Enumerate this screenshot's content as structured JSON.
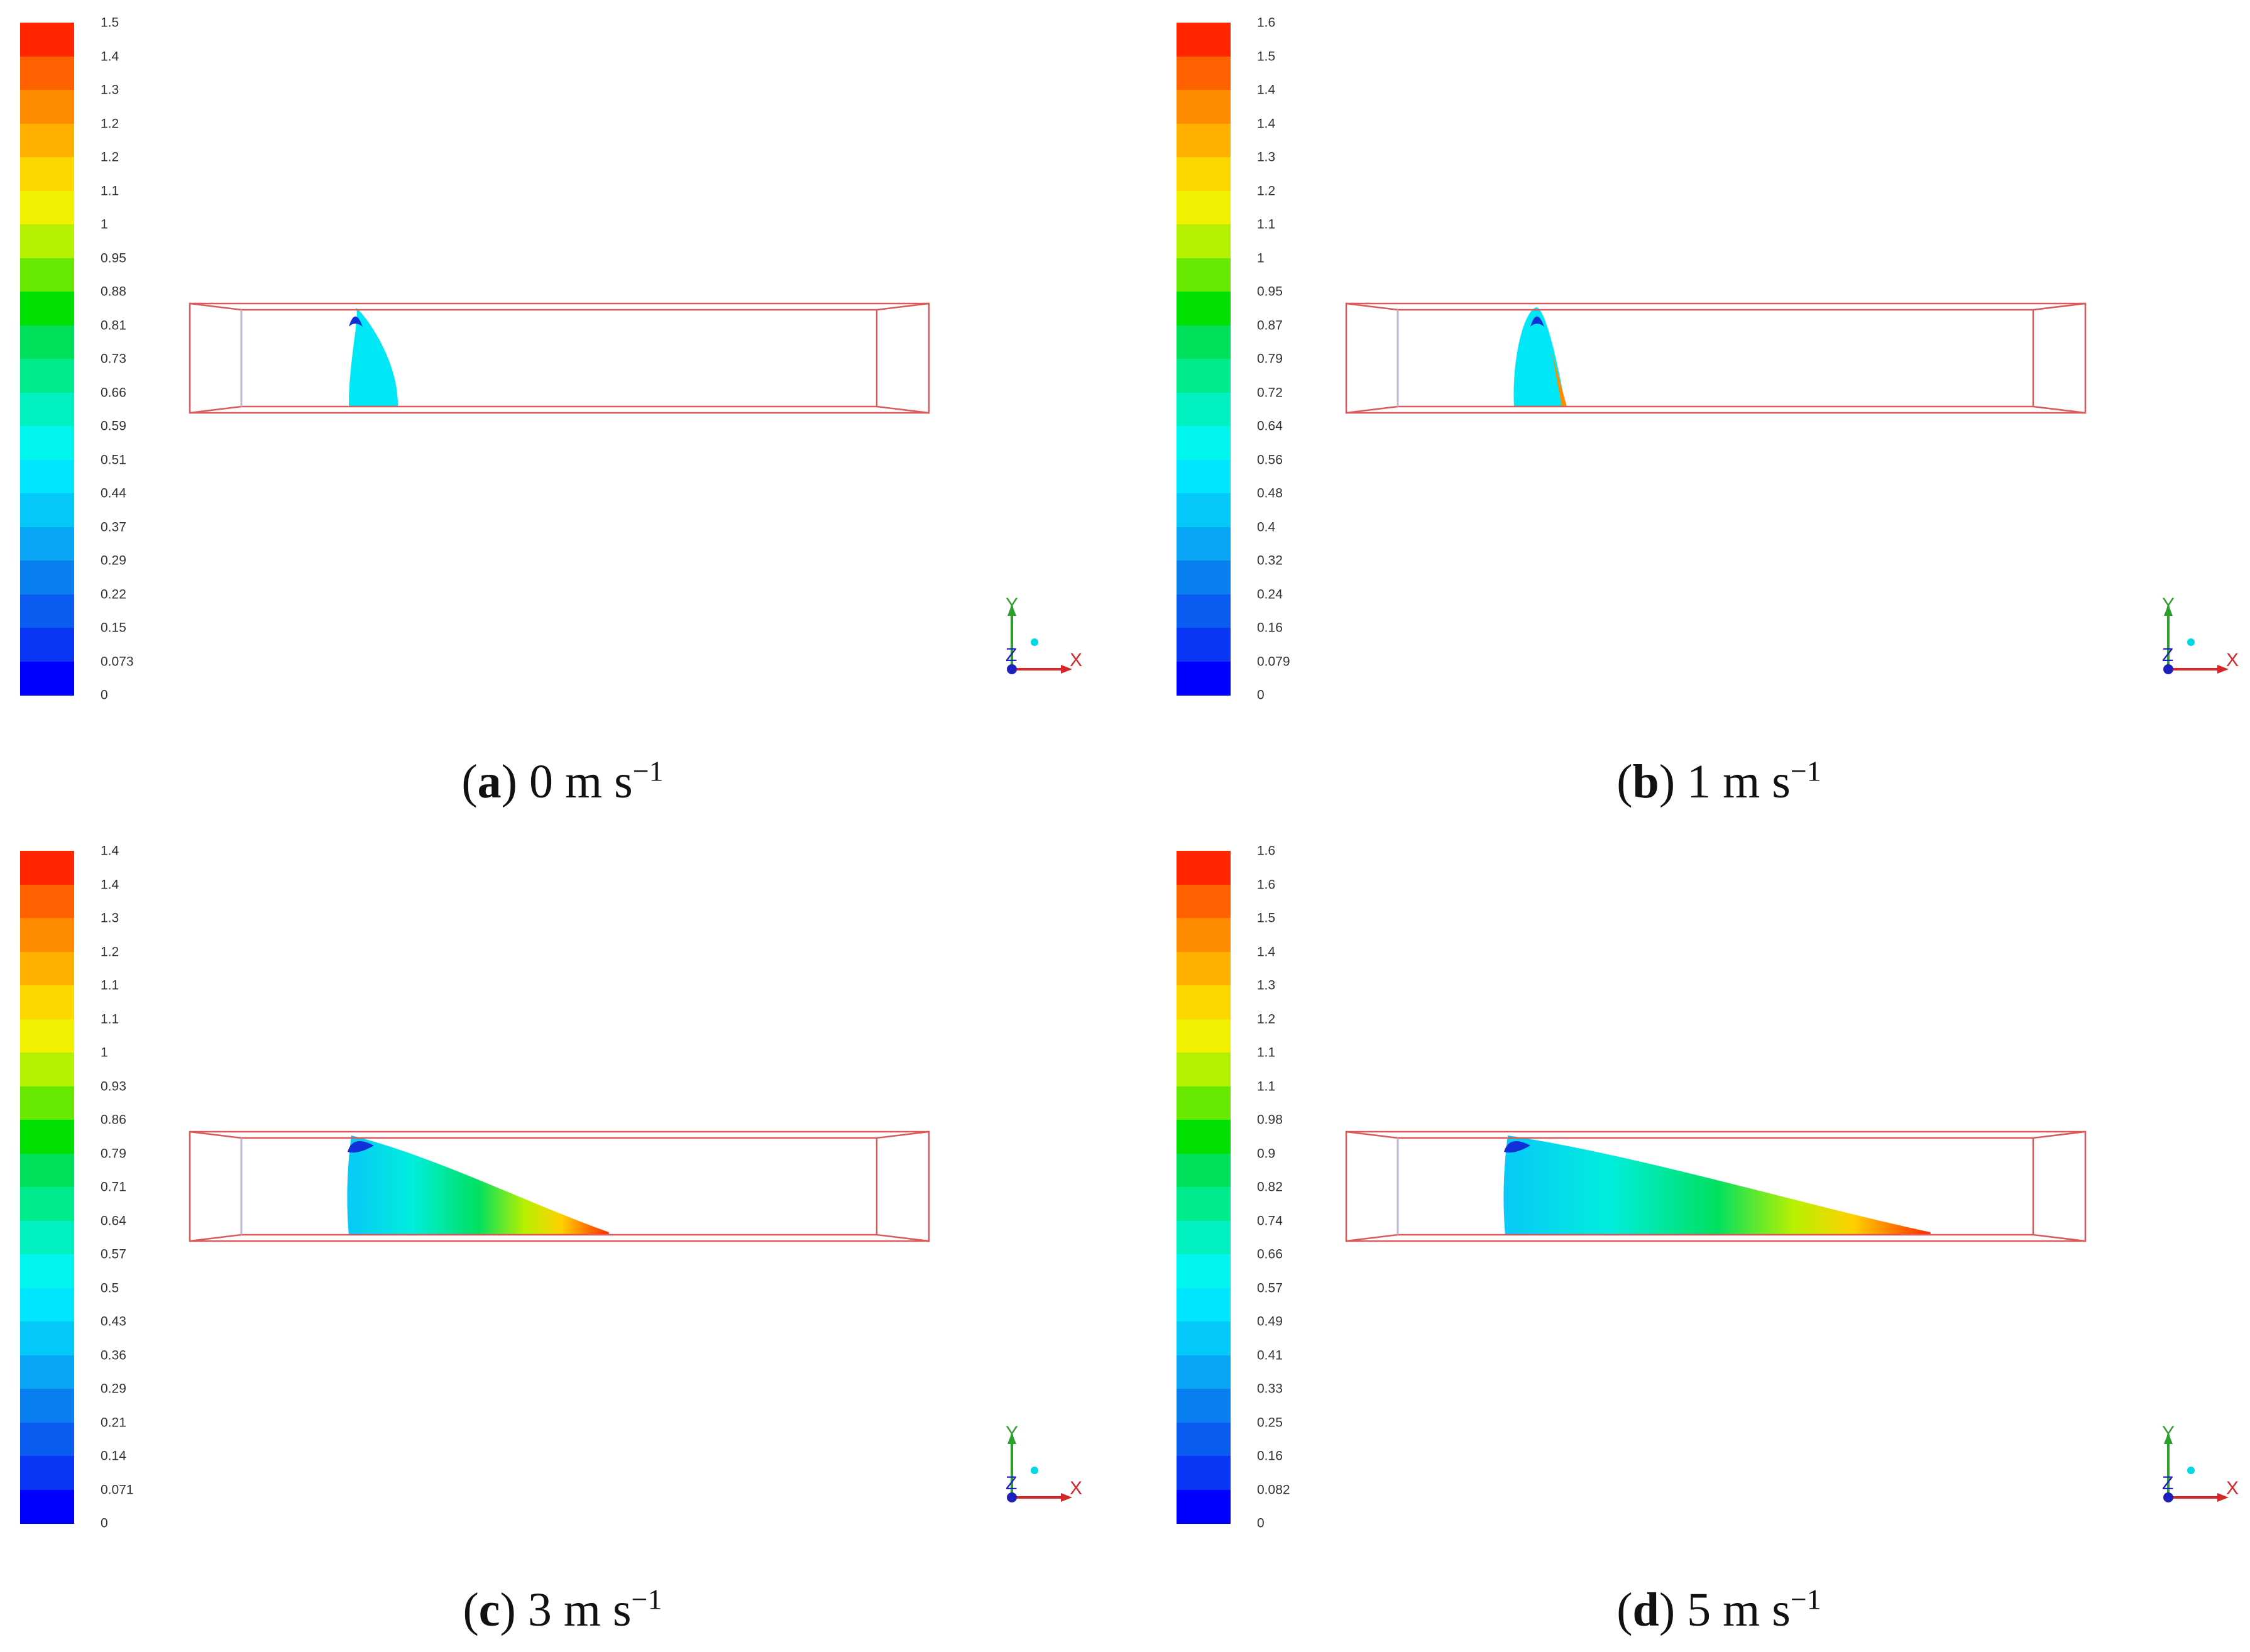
{
  "panels": [
    {
      "id": "a",
      "letter": "a",
      "speed": "0 m s",
      "unit_exp": "−1",
      "ticks": [
        "1.5",
        "1.4",
        "1.3",
        "1.2",
        "1.2",
        "1.1",
        "1",
        "0.95",
        "0.88",
        "0.81",
        "0.73",
        "0.66",
        "0.59",
        "0.51",
        "0.44",
        "0.37",
        "0.29",
        "0.22",
        "0.15",
        "0.073",
        "0"
      ],
      "plume_extent": 0.0
    },
    {
      "id": "b",
      "letter": "b",
      "speed": "1 m s",
      "unit_exp": "−1",
      "ticks": [
        "1.6",
        "1.5",
        "1.4",
        "1.4",
        "1.3",
        "1.2",
        "1.1",
        "1",
        "0.95",
        "0.87",
        "0.79",
        "0.72",
        "0.64",
        "0.56",
        "0.48",
        "0.4",
        "0.32",
        "0.24",
        "0.16",
        "0.079",
        "0"
      ],
      "plume_extent": 0.05
    },
    {
      "id": "c",
      "letter": "c",
      "speed": "3 m s",
      "unit_exp": "−1",
      "ticks": [
        "1.4",
        "1.4",
        "1.3",
        "1.2",
        "1.1",
        "1.1",
        "1",
        "0.93",
        "0.86",
        "0.79",
        "0.71",
        "0.64",
        "0.57",
        "0.5",
        "0.43",
        "0.36",
        "0.29",
        "0.21",
        "0.14",
        "0.071",
        "0"
      ],
      "plume_extent": 0.34
    },
    {
      "id": "d",
      "letter": "d",
      "speed": "5 m s",
      "unit_exp": "−1",
      "ticks": [
        "1.6",
        "1.6",
        "1.5",
        "1.4",
        "1.3",
        "1.2",
        "1.1",
        "1.1",
        "0.98",
        "0.9",
        "0.82",
        "0.74",
        "0.66",
        "0.57",
        "0.49",
        "0.41",
        "0.33",
        "0.25",
        "0.16",
        "0.082",
        "0"
      ],
      "plume_extent": 0.6
    }
  ],
  "axes": {
    "x": "X",
    "y": "Y",
    "z": "Z"
  },
  "colormap": [
    "#0000ff",
    "#0a36f5",
    "#0b5cf0",
    "#0a80f0",
    "#08a6f5",
    "#05c8fa",
    "#00e6ff",
    "#00f5ee",
    "#00f0c0",
    "#00eb8c",
    "#00e05a",
    "#00e000",
    "#66e800",
    "#b4f000",
    "#f0f000",
    "#ffd700",
    "#ffb000",
    "#ff8c00",
    "#ff6000",
    "#ff2600"
  ]
}
